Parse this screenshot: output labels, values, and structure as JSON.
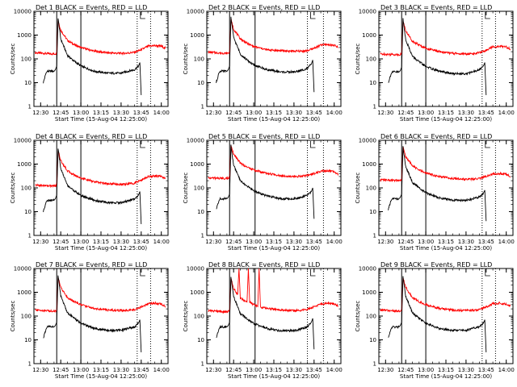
{
  "colors": {
    "events": "#000000",
    "lld": "#ff0000",
    "axes": "#000000",
    "background": "#ffffff"
  },
  "chart_data": {
    "type": "line",
    "layout": "3x3 grid",
    "ylog": true,
    "ylim": [
      1,
      10000
    ],
    "ytick_labels": [
      "1",
      "10",
      "100",
      "1000",
      "10000"
    ],
    "xlim": [
      "12:25",
      "14:05"
    ],
    "xtick_labels": [
      "12:30",
      "12:45",
      "13:00",
      "13:15",
      "13:30",
      "13:45",
      "14:00"
    ],
    "xlabel": "Start Time (15-Aug-04 12:25:00)",
    "ylabel": "Counts/sec",
    "panels": [
      {
        "title": "Det 1  BLACK = Events, RED = LLD",
        "solid_vlines": [
          "12:42",
          "13:00"
        ],
        "dotted_vlines": [
          "13:42",
          "13:52"
        ],
        "series": [
          {
            "color": "#ff0000",
            "x": [
              "12:26",
              "12:40",
              "12:42",
              "12:43",
              "12:45",
              "12:50",
              "12:55",
              "13:00",
              "13:10",
              "13:20",
              "13:30",
              "13:35",
              "13:40",
              "13:45",
              "13:50",
              "13:55",
              "14:00",
              "14:03"
            ],
            "y": [
              180,
              160,
              170,
              4200,
              1600,
              600,
              400,
              300,
              210,
              180,
              170,
              175,
              190,
              240,
              340,
              360,
              340,
              280
            ]
          },
          {
            "color": "#000000",
            "x": [
              "12:32",
              "12:34",
              "12:35",
              "12:40",
              "12:41",
              "12:42",
              "12:43",
              "12:45",
              "12:50",
              "12:55",
              "13:00",
              "13:10",
              "13:20",
              "13:30",
              "13:35",
              "13:40",
              "13:43",
              "13:44",
              "13:45"
            ],
            "y": [
              10,
              25,
              30,
              30,
              35,
              50,
              5000,
              700,
              140,
              80,
              50,
              30,
              25,
              25,
              30,
              35,
              50,
              70,
              3
            ]
          }
        ]
      },
      {
        "title": "Det 2  BLACK = Events, RED = LLD",
        "solid_vlines": [
          "12:42",
          "13:01"
        ],
        "dotted_vlines": [
          "13:40",
          "13:52"
        ],
        "series": [
          {
            "color": "#ff0000",
            "x": [
              "12:26",
              "12:40",
              "12:42",
              "12:43",
              "12:45",
              "12:50",
              "12:55",
              "13:00",
              "13:10",
              "13:20",
              "13:30",
              "13:35",
              "13:40",
              "13:45",
              "13:50",
              "13:55",
              "14:00",
              "14:03"
            ],
            "y": [
              190,
              170,
              180,
              4500,
              1800,
              700,
              450,
              330,
              240,
              220,
              210,
              210,
              220,
              280,
              380,
              400,
              370,
              300
            ]
          },
          {
            "color": "#000000",
            "x": [
              "12:32",
              "12:34",
              "12:35",
              "12:40",
              "12:41",
              "12:42",
              "12:43",
              "12:45",
              "12:50",
              "12:55",
              "13:00",
              "13:10",
              "13:20",
              "13:30",
              "13:35",
              "13:40",
              "13:43",
              "13:44",
              "13:45"
            ],
            "y": [
              10,
              25,
              30,
              30,
              35,
              50,
              5500,
              800,
              160,
              90,
              55,
              35,
              28,
              28,
              32,
              40,
              60,
              90,
              4
            ]
          }
        ]
      },
      {
        "title": "Det 3  BLACK = Events, RED = LLD",
        "solid_vlines": [
          "12:42",
          "13:00"
        ],
        "dotted_vlines": [
          "13:42",
          "13:52"
        ],
        "series": [
          {
            "color": "#ff0000",
            "x": [
              "12:26",
              "12:40",
              "12:42",
              "12:43",
              "12:45",
              "12:50",
              "12:55",
              "13:00",
              "13:10",
              "13:20",
              "13:30",
              "13:35",
              "13:40",
              "13:45",
              "13:50",
              "13:55",
              "14:00",
              "14:03"
            ],
            "y": [
              160,
              150,
              160,
              4000,
              1500,
              560,
              380,
              280,
              200,
              170,
              160,
              165,
              180,
              230,
              320,
              340,
              320,
              260
            ]
          },
          {
            "color": "#000000",
            "x": [
              "12:32",
              "12:34",
              "12:35",
              "12:40",
              "12:41",
              "12:42",
              "12:43",
              "12:45",
              "12:50",
              "12:55",
              "13:00",
              "13:10",
              "13:20",
              "13:30",
              "13:35",
              "13:40",
              "13:43",
              "13:44",
              "13:45"
            ],
            "y": [
              10,
              22,
              28,
              28,
              32,
              45,
              4800,
              650,
              130,
              75,
              48,
              30,
              24,
              24,
              28,
              35,
              50,
              70,
              3
            ]
          }
        ]
      },
      {
        "title": "Det 4  BLACK = Events, RED = LLD",
        "solid_vlines": [
          "12:42",
          "13:00"
        ],
        "dotted_vlines": [
          "13:42",
          "13:52"
        ],
        "series": [
          {
            "color": "#ff0000",
            "x": [
              "12:26",
              "12:40",
              "12:42",
              "12:43",
              "12:45",
              "12:50",
              "12:55",
              "13:00",
              "13:10",
              "13:20",
              "13:30",
              "13:35",
              "13:40",
              "13:45",
              "13:50",
              "13:55",
              "14:00",
              "14:03"
            ],
            "y": [
              130,
              120,
              130,
              3800,
              1400,
              520,
              350,
              260,
              180,
              150,
              140,
              145,
              160,
              210,
              300,
              320,
              300,
              240
            ]
          },
          {
            "color": "#000000",
            "x": [
              "12:32",
              "12:34",
              "12:35",
              "12:40",
              "12:41",
              "12:42",
              "12:43",
              "12:45",
              "12:50",
              "12:55",
              "13:00",
              "13:10",
              "13:20",
              "13:30",
              "13:35",
              "13:40",
              "13:43",
              "13:44",
              "13:45"
            ],
            "y": [
              10,
              25,
              30,
              30,
              35,
              50,
              4600,
              650,
              130,
              75,
              48,
              30,
              24,
              24,
              28,
              35,
              50,
              70,
              3
            ]
          }
        ]
      },
      {
        "title": "Det 5  BLACK = Events, RED = LLD",
        "solid_vlines": [
          "12:42",
          "13:01"
        ],
        "dotted_vlines": [
          "13:40",
          "13:52"
        ],
        "series": [
          {
            "color": "#ff0000",
            "x": [
              "12:26",
              "12:40",
              "12:42",
              "12:43",
              "12:45",
              "12:50",
              "12:55",
              "13:00",
              "13:10",
              "13:20",
              "13:30",
              "13:35",
              "13:40",
              "13:45",
              "13:50",
              "13:55",
              "14:00",
              "14:03"
            ],
            "y": [
              260,
              250,
              260,
              6000,
              2600,
              1100,
              750,
              560,
              400,
              330,
              300,
              310,
              340,
              400,
              500,
              520,
              480,
              380
            ]
          },
          {
            "color": "#000000",
            "x": [
              "12:32",
              "12:34",
              "12:35",
              "12:40",
              "12:41",
              "12:42",
              "12:43",
              "12:45",
              "12:50",
              "12:55",
              "13:00",
              "13:10",
              "13:20",
              "13:30",
              "13:35",
              "13:40",
              "13:43",
              "13:44",
              "13:45"
            ],
            "y": [
              12,
              28,
              35,
              35,
              40,
              55,
              6000,
              900,
              200,
              120,
              75,
              45,
              35,
              35,
              40,
              50,
              70,
              100,
              5
            ]
          }
        ]
      },
      {
        "title": "Det 6  BLACK = Events, RED = LLD",
        "solid_vlines": [
          "12:42",
          "13:00"
        ],
        "dotted_vlines": [
          "13:42",
          "13:52"
        ],
        "series": [
          {
            "color": "#ff0000",
            "x": [
              "12:26",
              "12:40",
              "12:42",
              "12:43",
              "12:45",
              "12:50",
              "12:55",
              "13:00",
              "13:10",
              "13:20",
              "13:30",
              "13:35",
              "13:40",
              "13:45",
              "13:50",
              "13:55",
              "14:00",
              "14:03"
            ],
            "y": [
              220,
              200,
              210,
              5200,
              2100,
              850,
              560,
              420,
              300,
              250,
              230,
              235,
              250,
              300,
              380,
              400,
              370,
              300
            ]
          },
          {
            "color": "#000000",
            "x": [
              "12:32",
              "12:34",
              "12:35",
              "12:40",
              "12:41",
              "12:42",
              "12:43",
              "12:45",
              "12:50",
              "12:55",
              "13:00",
              "13:10",
              "13:20",
              "13:30",
              "13:35",
              "13:40",
              "13:43",
              "13:44",
              "13:45"
            ],
            "y": [
              12,
              28,
              35,
              35,
              40,
              55,
              5200,
              800,
              170,
              100,
              62,
              38,
              30,
              30,
              34,
              42,
              60,
              80,
              4
            ]
          }
        ]
      },
      {
        "title": "Det 7  BLACK = Events, RED = LLD",
        "solid_vlines": [
          "12:42",
          "13:00"
        ],
        "dotted_vlines": [
          "13:42",
          "13:52"
        ],
        "series": [
          {
            "color": "#ff0000",
            "x": [
              "12:26",
              "12:40",
              "12:42",
              "12:43",
              "12:45",
              "12:50",
              "12:55",
              "13:00",
              "13:10",
              "13:20",
              "13:30",
              "13:35",
              "13:40",
              "13:45",
              "13:50",
              "13:55",
              "14:00",
              "14:03"
            ],
            "y": [
              180,
              160,
              170,
              4200,
              1600,
              600,
              400,
              300,
              210,
              180,
              170,
              175,
              190,
              240,
              330,
              350,
              320,
              260
            ]
          },
          {
            "color": "#000000",
            "x": [
              "12:32",
              "12:34",
              "12:35",
              "12:40",
              "12:41",
              "12:42",
              "12:43",
              "12:45",
              "12:50",
              "12:55",
              "13:00",
              "13:10",
              "13:20",
              "13:30",
              "13:35",
              "13:40",
              "13:43",
              "13:44",
              "13:45"
            ],
            "y": [
              12,
              28,
              35,
              35,
              40,
              55,
              5000,
              700,
              140,
              80,
              50,
              30,
              25,
              25,
              30,
              35,
              50,
              70,
              3
            ]
          }
        ]
      },
      {
        "title": "Det 8  BLACK = Events, RED = LLD",
        "solid_vlines": [
          "12:42",
          "13:01"
        ],
        "dotted_vlines": [
          "13:40",
          "13:52"
        ],
        "series": [
          {
            "color": "#ff0000",
            "x": [
              "12:26",
              "12:40",
              "12:42",
              "12:43",
              "12:45",
              "12:48",
              "12:49",
              "12:50",
              "12:55",
              "12:56",
              "12:57",
              "13:00",
              "13:03",
              "13:04",
              "13:05",
              "13:10",
              "13:20",
              "13:30",
              "13:35",
              "13:40",
              "13:45",
              "13:50",
              "13:55",
              "14:00",
              "14:03"
            ],
            "y": [
              170,
              150,
              160,
              4000,
              1500,
              800,
              10000,
              560,
              400,
              10000,
              380,
              300,
              250,
              10000,
              240,
              210,
              180,
              170,
              175,
              190,
              240,
              320,
              340,
              320,
              260
            ]
          },
          {
            "color": "#000000",
            "x": [
              "12:32",
              "12:34",
              "12:35",
              "12:40",
              "12:41",
              "12:42",
              "12:43",
              "12:45",
              "12:50",
              "12:55",
              "13:00",
              "13:10",
              "13:20",
              "13:30",
              "13:35",
              "13:40",
              "13:43",
              "13:44",
              "13:45"
            ],
            "y": [
              12,
              28,
              35,
              35,
              40,
              55,
              4500,
              650,
              130,
              75,
              48,
              30,
              24,
              24,
              28,
              35,
              55,
              80,
              4
            ]
          }
        ]
      },
      {
        "title": "Det 9  BLACK = Events, RED = LLD",
        "solid_vlines": [
          "12:42",
          "13:00"
        ],
        "dotted_vlines": [
          "13:42",
          "13:52"
        ],
        "series": [
          {
            "color": "#ff0000",
            "x": [
              "12:26",
              "12:40",
              "12:42",
              "12:43",
              "12:45",
              "12:50",
              "12:55",
              "13:00",
              "13:10",
              "13:20",
              "13:30",
              "13:35",
              "13:40",
              "13:45",
              "13:50",
              "13:55",
              "14:00",
              "14:03"
            ],
            "y": [
              180,
              160,
              170,
              4200,
              1600,
              600,
              400,
              300,
              210,
              180,
              170,
              175,
              190,
              240,
              330,
              350,
              320,
              260
            ]
          },
          {
            "color": "#000000",
            "x": [
              "12:32",
              "12:34",
              "12:35",
              "12:40",
              "12:41",
              "12:42",
              "12:43",
              "12:45",
              "12:50",
              "12:55",
              "13:00",
              "13:10",
              "13:20",
              "13:30",
              "13:35",
              "13:40",
              "13:43",
              "13:44",
              "13:45"
            ],
            "y": [
              12,
              28,
              35,
              35,
              40,
              55,
              4800,
              700,
              140,
              80,
              50,
              30,
              25,
              25,
              30,
              35,
              50,
              70,
              3
            ]
          }
        ]
      }
    ]
  }
}
